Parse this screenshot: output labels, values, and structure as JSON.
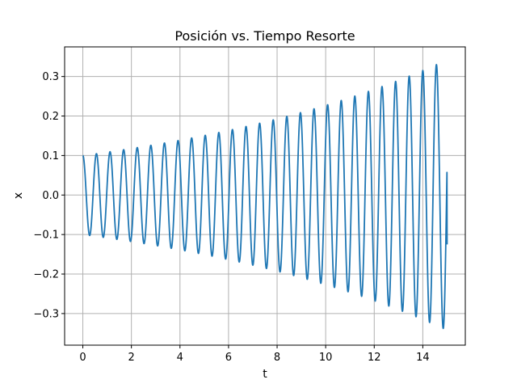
{
  "chart_data": {
    "type": "line",
    "title": "Posición vs. Tiempo Resorte",
    "xlabel": "t",
    "ylabel": "x",
    "xlim": [
      -0.75,
      15.75
    ],
    "ylim": [
      -0.38,
      0.375
    ],
    "grid": true,
    "line_color": "#1f77b4",
    "grid_color": "#b0b0b0",
    "x_ticks": [
      0,
      2,
      4,
      6,
      8,
      10,
      12,
      14
    ],
    "x_tick_labels": [
      "0",
      "2",
      "4",
      "6",
      "8",
      "10",
      "12",
      "14"
    ],
    "y_ticks": [
      -0.3,
      -0.2,
      -0.1,
      0.0,
      0.1,
      0.2,
      0.3
    ],
    "y_tick_labels": [
      "−0.3",
      "−0.2",
      "−0.1",
      "0.0",
      "0.1",
      "0.2",
      "0.3"
    ],
    "series": [
      {
        "t_start": 0,
        "t_end": 15,
        "initial_position": 0.1,
        "amplitude_growth_rate": 0.082,
        "period": 0.56,
        "end_value": -0.125
      }
    ]
  }
}
